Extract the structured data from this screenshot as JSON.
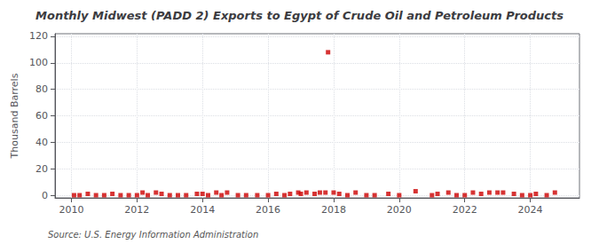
{
  "chart_data": {
    "type": "scatter",
    "title": "Monthly Midwest (PADD 2) Exports to Egypt of Crude Oil and Petroleum Products",
    "ylabel": "Thousand Barrels",
    "annotation": "Source: U.S. Energy Information Administration",
    "color": "#cc0000",
    "marker": "square",
    "grid": true,
    "xlim": [
      2009.5,
      2025.5
    ],
    "ylim": [
      -2,
      122
    ],
    "xticks": [
      2010,
      2012,
      2014,
      2016,
      2018,
      2020,
      2022,
      2024
    ],
    "yticks": [
      0,
      20,
      40,
      60,
      80,
      100,
      120
    ],
    "x": [
      2010.08,
      2010.25,
      2010.5,
      2010.75,
      2011.0,
      2011.25,
      2011.5,
      2011.75,
      2012.0,
      2012.17,
      2012.33,
      2012.58,
      2012.75,
      2013.0,
      2013.25,
      2013.5,
      2013.83,
      2014.0,
      2014.17,
      2014.42,
      2014.58,
      2014.75,
      2015.08,
      2015.33,
      2015.67,
      2016.0,
      2016.25,
      2016.5,
      2016.67,
      2016.92,
      2017.0,
      2017.17,
      2017.42,
      2017.58,
      2017.75,
      2017.83,
      2018.0,
      2018.17,
      2018.42,
      2018.67,
      2019.0,
      2019.25,
      2019.67,
      2020.0,
      2020.5,
      2021.0,
      2021.17,
      2021.5,
      2021.75,
      2022.0,
      2022.25,
      2022.5,
      2022.75,
      2023.0,
      2023.17,
      2023.5,
      2023.75,
      2024.0,
      2024.17,
      2024.5,
      2024.75
    ],
    "values": [
      0,
      0,
      1,
      0,
      0,
      1,
      0,
      0,
      0,
      2,
      0,
      2,
      1,
      0,
      0,
      0,
      1,
      1,
      0,
      2,
      0,
      2,
      0,
      0,
      0,
      0,
      1,
      0,
      1,
      2,
      1,
      2,
      1,
      2,
      2,
      108,
      2,
      1,
      0,
      2,
      0,
      0,
      1,
      0,
      3,
      0,
      1,
      2,
      0,
      0,
      2,
      1,
      2,
      2,
      2,
      1,
      0,
      0,
      1,
      0,
      2
    ]
  }
}
